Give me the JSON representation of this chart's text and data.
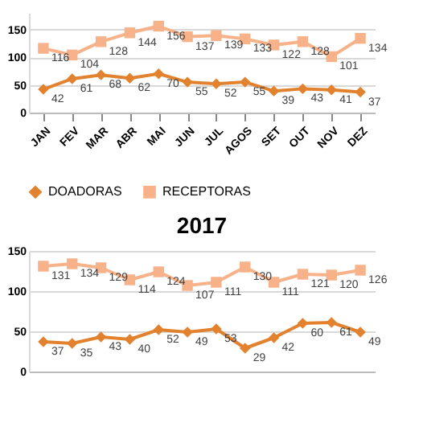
{
  "chart_data": [
    {
      "type": "line",
      "categories": [
        "JAN",
        "FEV",
        "MAR",
        "ABR",
        "MAI",
        "JUN",
        "JUL",
        "AGOS",
        "SET",
        "OUT",
        "NOV",
        "DEZ"
      ],
      "ylim": [
        0,
        180
      ],
      "yticks": [
        0,
        50,
        100,
        150
      ],
      "grid": "y",
      "legend": "bottom",
      "data_labels": true,
      "series": [
        {
          "name": "DOADORAS",
          "color": "#e2822f",
          "marker": "diamond",
          "values": [
            42,
            61,
            68,
            62,
            70,
            55,
            52,
            55,
            39,
            43,
            41,
            37
          ]
        },
        {
          "name": "RECEPTORAS",
          "color": "#f7b28a",
          "marker": "square",
          "values": [
            116,
            104,
            128,
            144,
            156,
            137,
            139,
            133,
            122,
            128,
            101,
            134
          ]
        }
      ]
    },
    {
      "type": "line",
      "title": "2017",
      "categories": [
        null,
        null,
        null,
        null,
        null,
        null,
        null,
        null,
        null,
        null,
        null,
        null
      ],
      "ylim": [
        0,
        150
      ],
      "yticks": [
        0,
        50,
        100,
        150
      ],
      "grid": "y",
      "data_labels": true,
      "tick_labels": "y",
      "series": [
        {
          "color": "#e2822f",
          "marker": "diamond",
          "values": [
            37,
            35,
            43,
            40,
            52,
            49,
            53,
            29,
            42,
            60,
            61,
            49
          ]
        },
        {
          "color": "#f7b28a",
          "marker": "square",
          "values": [
            131,
            134,
            129,
            114,
            124,
            107,
            111,
            130,
            111,
            121,
            120,
            126
          ]
        }
      ]
    }
  ]
}
